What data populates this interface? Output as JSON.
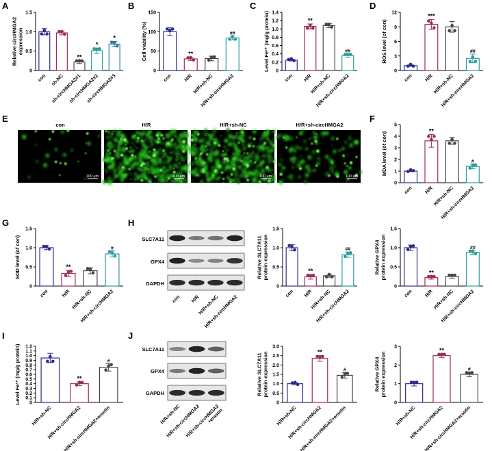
{
  "panel_labels": [
    "A",
    "B",
    "C",
    "D",
    "E",
    "F",
    "G",
    "H",
    "I",
    "J"
  ],
  "colors": {
    "con": "#2b2b8c",
    "hr": "#9c2a5a",
    "hrnc": "#444444",
    "treat": "#2a9d9a",
    "point": "#000000"
  },
  "micrographs": {
    "labels": [
      "con",
      "H/R",
      "H/R+sh-NC",
      "H/R+sh-circHMGA2"
    ],
    "scale_bar": "100 μm",
    "intensity": [
      0.03,
      0.85,
      0.78,
      0.2
    ]
  },
  "blot_H": {
    "rows": [
      "SLC7A11",
      "GPX4",
      "GAPDH"
    ],
    "lanes": [
      "con",
      "H/R",
      "H/R+sh-NC",
      "H/R+sh-circHMGA2"
    ]
  },
  "blot_J": {
    "rows": [
      "SLC7A11",
      "GPX4",
      "GAPDH"
    ],
    "lanes": [
      "H/R+sh-NC",
      "H/R+sh-circHMGA2",
      "H/R+sh-circHMGA2\n+erastin"
    ]
  },
  "chart_data": [
    {
      "panel": "A",
      "type": "bar",
      "categories": [
        "con",
        "sh-NC",
        "sh-circHMGA2#1",
        "sh-circHMGA2#2",
        "sh-circHMGA2#3"
      ],
      "values": [
        1.0,
        0.97,
        0.22,
        0.51,
        0.68
      ],
      "errors": [
        0.08,
        0.05,
        0.04,
        0.07,
        0.07
      ],
      "colors": [
        "#2b2b8c",
        "#9c2a5a",
        "#444444",
        "#2a9d9a",
        "#2a7aa0"
      ],
      "ylabel": "Relative circHMGA2\nexpression",
      "ylim": [
        0,
        1.5
      ],
      "yticks": [
        0,
        0.5,
        1.0,
        1.5
      ],
      "ytick_labels": [
        "0",
        "0.5",
        "1.0",
        "1.5"
      ],
      "annotations": [
        "",
        "",
        "**",
        "*",
        "*"
      ]
    },
    {
      "panel": "B",
      "type": "bar",
      "categories": [
        "con",
        "H/R",
        "H/R+sh-NC",
        "H/R+sh-circHMGA2"
      ],
      "values": [
        100,
        30,
        31,
        84
      ],
      "errors": [
        10,
        4,
        6,
        5
      ],
      "ylabel": "Cell viability (%)",
      "ylim": [
        0,
        150
      ],
      "yticks": [
        0,
        50,
        100,
        150
      ],
      "ytick_labels": [
        "0",
        "50",
        "100",
        "150"
      ],
      "annotations": [
        "",
        "**",
        "",
        "##"
      ]
    },
    {
      "panel": "C",
      "type": "bar",
      "categories": [
        "con",
        "H/R",
        "H/R+sh-NC",
        "H/R+sh-circHMGA2"
      ],
      "values": [
        0.25,
        1.06,
        1.08,
        0.36
      ],
      "errors": [
        0.02,
        0.06,
        0.05,
        0.04
      ],
      "ylabel": "Level Fe²⁺ (mg/g protein)",
      "ylim": [
        0,
        1.4
      ],
      "yticks": [
        0,
        0.2,
        0.4,
        0.6,
        0.8,
        1.0,
        1.2,
        1.4
      ],
      "ytick_labels": [
        "0",
        "0.2",
        "0.4",
        "0.6",
        "0.8",
        "1.0",
        "1.2",
        "1.4"
      ],
      "annotations": [
        "",
        "**",
        "",
        "##"
      ]
    },
    {
      "panel": "D",
      "type": "bar",
      "categories": [
        "con",
        "H/R",
        "H/R+sh-NC",
        "H/R+sh-circHMGA2"
      ],
      "values": [
        1.0,
        9.5,
        9.0,
        2.5
      ],
      "errors": [
        0.15,
        1.0,
        1.1,
        0.9
      ],
      "ylabel": "ROS level (of con)",
      "ylim": [
        0,
        12
      ],
      "yticks": [
        0,
        3,
        6,
        9,
        12
      ],
      "ytick_labels": [
        "0",
        "3",
        "6",
        "9",
        "12"
      ],
      "annotations": [
        "",
        "***",
        "",
        "##"
      ]
    },
    {
      "panel": "F",
      "type": "bar",
      "categories": [
        "con",
        "H/R",
        "H/R+sh-NC",
        "H/R+sh-circHMGA2"
      ],
      "values": [
        1.0,
        3.6,
        3.6,
        1.4
      ],
      "errors": [
        0.05,
        0.55,
        0.3,
        0.2
      ],
      "ylabel": "MDA level (of con)",
      "ylim": [
        0,
        5
      ],
      "yticks": [
        0,
        1,
        2,
        3,
        4,
        5
      ],
      "ytick_labels": [
        "0",
        "1",
        "2",
        "3",
        "4",
        "5"
      ],
      "annotations": [
        "",
        "**",
        "",
        "#"
      ]
    },
    {
      "panel": "G",
      "type": "bar",
      "categories": [
        "con",
        "H/R",
        "H/R+sh-NC",
        "H/R+sh-circHMGA2"
      ],
      "values": [
        1.0,
        0.33,
        0.4,
        0.84
      ],
      "errors": [
        0.05,
        0.08,
        0.08,
        0.08
      ],
      "ylabel": "SOD level (of con)",
      "ylim": [
        0,
        1.5
      ],
      "yticks": [
        0,
        0.5,
        1.0,
        1.5
      ],
      "ytick_labels": [
        "0",
        "0.5",
        "1.0",
        "1.5"
      ],
      "annotations": [
        "",
        "**",
        "",
        "#"
      ]
    },
    {
      "panel": "H1",
      "type": "bar",
      "categories": [
        "con",
        "H/R",
        "H/R+sh-NC",
        "H/R+sh-circHMGA2"
      ],
      "values": [
        1.0,
        0.24,
        0.27,
        0.82
      ],
      "errors": [
        0.08,
        0.06,
        0.04,
        0.07
      ],
      "ylabel": "Relative SLC7A11\nprotein expression",
      "ylim": [
        0,
        1.5
      ],
      "yticks": [
        0,
        0.5,
        1.0,
        1.5
      ],
      "ytick_labels": [
        "0",
        "0.5",
        "1.0",
        "1.5"
      ],
      "annotations": [
        "",
        "**",
        "",
        "##"
      ]
    },
    {
      "panel": "H2",
      "type": "bar",
      "categories": [
        "con",
        "H/R",
        "H/R+sh-NC",
        "H/R+sh-circHMGA2"
      ],
      "values": [
        1.0,
        0.22,
        0.25,
        0.88
      ],
      "errors": [
        0.07,
        0.04,
        0.05,
        0.05
      ],
      "ylabel": "Relative GPX4\nprotein expression",
      "ylim": [
        0,
        1.5
      ],
      "yticks": [
        0,
        0.5,
        1.0,
        1.5
      ],
      "ytick_labels": [
        "0",
        "0.5",
        "1.0",
        "1.5"
      ],
      "annotations": [
        "",
        "**",
        "",
        "##"
      ]
    },
    {
      "panel": "I",
      "type": "bar",
      "categories": [
        "H/R+sh-NC",
        "H/R+sh-circHMGA2",
        "H/R+sh-circHMGA2+erastin"
      ],
      "values": [
        0.95,
        0.4,
        0.75
      ],
      "errors": [
        0.1,
        0.04,
        0.08
      ],
      "ylabel": "Level Fe²⁺ (mg/g protein)",
      "ylim": [
        0,
        1.2
      ],
      "yticks": [
        0,
        0.1,
        0.2,
        0.3,
        0.4,
        0.5,
        0.6,
        0.7,
        0.8,
        0.9,
        1.0,
        1.1,
        1.2
      ],
      "ytick_labels": [
        "0",
        "0.1",
        "0.2",
        "0.3",
        "0.4",
        "0.5",
        "0.6",
        "0.7",
        "0.8",
        "0.9",
        "1.0",
        "1.1",
        "1.2"
      ],
      "annotations": [
        "",
        "**",
        "#"
      ]
    },
    {
      "panel": "J1",
      "type": "bar",
      "categories": [
        "H/R+sh-NC",
        "H/R+sh-circHMGA2",
        "H/R+sh-circHMGA2+erastin"
      ],
      "values": [
        1.0,
        2.35,
        1.45
      ],
      "errors": [
        0.06,
        0.15,
        0.15
      ],
      "ylabel": "Relative SLC7A11\nprotein expression",
      "ylim": [
        0,
        3
      ],
      "yticks": [
        0,
        0.5,
        1.0,
        1.5,
        2.0,
        2.5,
        3.0
      ],
      "ytick_labels": [
        "0",
        "0.5",
        "1.0",
        "1.5",
        "2.0",
        "2.5",
        "3.0"
      ],
      "annotations": [
        "",
        "**",
        "#"
      ]
    },
    {
      "panel": "J2",
      "type": "bar",
      "categories": [
        "H/R+sh-NC",
        "H/R+sh-circHMGA2",
        "H/R+sh-circHMGA2+erastin"
      ],
      "values": [
        1.0,
        2.5,
        1.5
      ],
      "errors": [
        0.12,
        0.1,
        0.13
      ],
      "ylabel": "Relative GPX4\nprotein expression",
      "ylim": [
        0,
        3
      ],
      "yticks": [
        0,
        1,
        2,
        3
      ],
      "ytick_labels": [
        "0",
        "1",
        "2",
        "3"
      ],
      "annotations": [
        "",
        "**",
        "#"
      ]
    }
  ]
}
